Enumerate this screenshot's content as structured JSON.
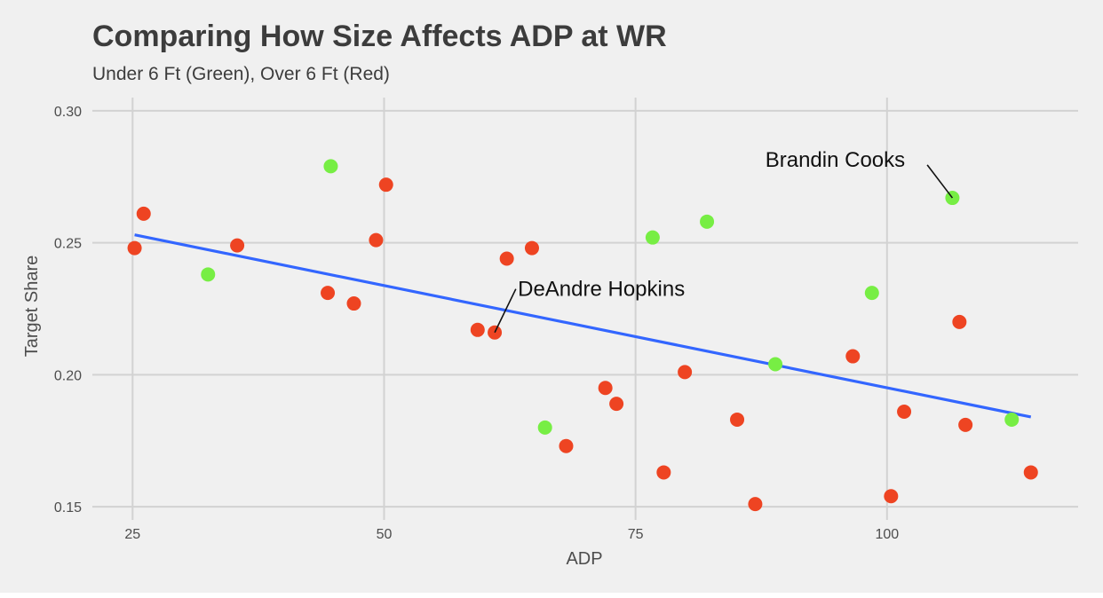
{
  "chart_data": {
    "type": "scatter",
    "title": "Comparing How Size Affects ADP at WR",
    "subtitle": "Under 6 Ft (Green), Over 6 Ft (Red)",
    "xlabel": "ADP",
    "ylabel": "Target Share",
    "xlim": [
      21,
      119
    ],
    "ylim": [
      0.145,
      0.305
    ],
    "x_ticks": [
      25,
      50,
      75,
      100
    ],
    "x_tick_labels": [
      "25",
      "50",
      "75",
      "100"
    ],
    "y_ticks": [
      0.15,
      0.2,
      0.25,
      0.3
    ],
    "y_tick_labels": [
      "0.15",
      "0.20",
      "0.25",
      "0.30"
    ],
    "grid": true,
    "colors": {
      "under_6ft": "#77ee44",
      "over_6ft": "#ee4422",
      "trend": "#3366ff"
    },
    "series": [
      {
        "color": "#77ee44",
        "points": [
          {
            "x": 32.5,
            "y": 0.238
          },
          {
            "x": 44.7,
            "y": 0.279
          },
          {
            "x": 66.0,
            "y": 0.18
          },
          {
            "x": 76.7,
            "y": 0.252
          },
          {
            "x": 82.1,
            "y": 0.258
          },
          {
            "x": 88.9,
            "y": 0.204
          },
          {
            "x": 98.5,
            "y": 0.231
          },
          {
            "x": 106.5,
            "y": 0.267
          },
          {
            "x": 112.4,
            "y": 0.183
          }
        ]
      },
      {
        "color": "#ee4422",
        "points": [
          {
            "x": 25.2,
            "y": 0.248
          },
          {
            "x": 26.1,
            "y": 0.261
          },
          {
            "x": 35.4,
            "y": 0.249
          },
          {
            "x": 44.4,
            "y": 0.231
          },
          {
            "x": 47.0,
            "y": 0.227
          },
          {
            "x": 49.2,
            "y": 0.251
          },
          {
            "x": 50.2,
            "y": 0.272
          },
          {
            "x": 59.3,
            "y": 0.217
          },
          {
            "x": 61.0,
            "y": 0.216
          },
          {
            "x": 62.2,
            "y": 0.244
          },
          {
            "x": 64.7,
            "y": 0.248
          },
          {
            "x": 68.1,
            "y": 0.173
          },
          {
            "x": 72.0,
            "y": 0.195
          },
          {
            "x": 73.1,
            "y": 0.189
          },
          {
            "x": 77.8,
            "y": 0.163
          },
          {
            "x": 79.9,
            "y": 0.201
          },
          {
            "x": 85.1,
            "y": 0.183
          },
          {
            "x": 86.9,
            "y": 0.151
          },
          {
            "x": 96.6,
            "y": 0.207
          },
          {
            "x": 100.4,
            "y": 0.154
          },
          {
            "x": 101.7,
            "y": 0.186
          },
          {
            "x": 107.2,
            "y": 0.22
          },
          {
            "x": 107.8,
            "y": 0.181
          },
          {
            "x": 114.3,
            "y": 0.163
          }
        ]
      }
    ],
    "trend_line": {
      "x": [
        25.2,
        114.3
      ],
      "y": [
        0.253,
        0.184
      ]
    },
    "annotations": [
      {
        "text": "Brandin Cooks",
        "x": 106.5,
        "y": 0.267,
        "label_x": 87.9,
        "label_y": 0.2815,
        "line_from": [
          104.0,
          0.2795
        ]
      },
      {
        "text": "DeAndre Hopkins",
        "x": 61.0,
        "y": 0.216,
        "label_x": 63.3,
        "label_y": 0.2325,
        "line_from": [
          63.1,
          0.2325
        ]
      }
    ]
  }
}
